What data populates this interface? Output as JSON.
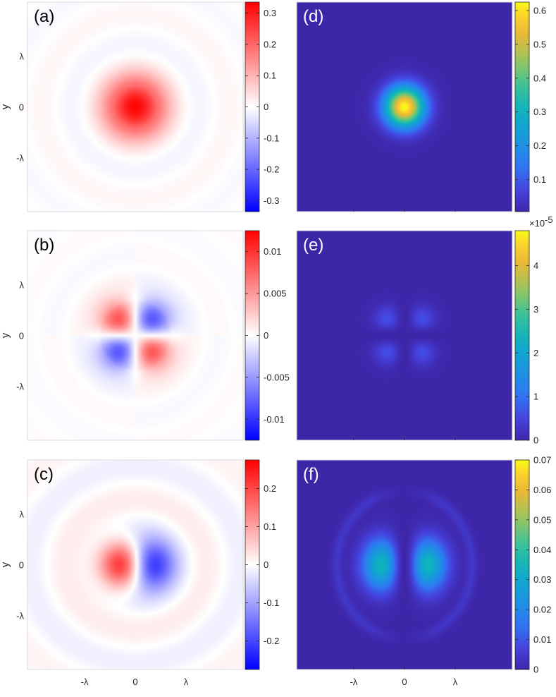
{
  "chart_data": [
    {
      "type": "heatmap",
      "panel_label": "(a)",
      "field": "gauss_ring",
      "colormap": "bwr",
      "ylabel": "y",
      "y_ticks": [
        "λ",
        "0",
        "-λ"
      ],
      "x_ticks": [],
      "colorbar": {
        "ticks": [
          0.3,
          0.2,
          0.1,
          0,
          -0.1,
          -0.2,
          -0.3
        ],
        "tick_labels": [
          "0.3",
          "0.2",
          "0.1",
          "0",
          "-0.1",
          "-0.2",
          "-0.3"
        ],
        "range": [
          -0.335,
          0.335
        ]
      }
    },
    {
      "type": "heatmap",
      "panel_label": "(b)",
      "field": "quadrupole",
      "colormap": "bwr",
      "ylabel": "y",
      "y_ticks": [
        "λ",
        "0",
        "-λ"
      ],
      "x_ticks": [],
      "colorbar": {
        "ticks": [
          0.01,
          0.005,
          0,
          -0.005,
          -0.01
        ],
        "tick_labels": [
          "0.01",
          "0.005",
          "0",
          "-0.005",
          "-0.01"
        ],
        "range": [
          -0.0125,
          0.0125
        ]
      }
    },
    {
      "type": "heatmap",
      "panel_label": "(c)",
      "field": "dipole",
      "colormap": "bwr",
      "ylabel": "y",
      "y_ticks": [
        "λ",
        "0",
        "-λ"
      ],
      "x_ticks": [
        "-λ",
        "0",
        "λ"
      ],
      "colorbar": {
        "ticks": [
          0.2,
          0.1,
          0,
          -0.1,
          -0.2
        ],
        "tick_labels": [
          "0.2",
          "0.1",
          "0",
          "-0.1",
          "-0.2"
        ],
        "range": [
          -0.275,
          0.275
        ]
      }
    },
    {
      "type": "heatmap",
      "panel_label": "(d)",
      "field": "gauss_intensity",
      "colormap": "parula",
      "ylabel": "",
      "y_ticks": [],
      "x_ticks": [],
      "colorbar": {
        "ticks": [
          0.6,
          0.5,
          0.4,
          0.3,
          0.2,
          0.1
        ],
        "tick_labels": [
          "0.6",
          "0.5",
          "0.4",
          "0.3",
          "0.2",
          "0.1"
        ],
        "range": [
          0.005,
          0.625
        ]
      }
    },
    {
      "type": "heatmap",
      "panel_label": "(e)",
      "field": "quad_intensity",
      "colormap": "parula",
      "ylabel": "",
      "y_ticks": [],
      "x_ticks": [],
      "colorbar": {
        "ticks": [
          4,
          3,
          2,
          1,
          0
        ],
        "tick_labels": [
          "4",
          "3",
          "2",
          "1",
          "0"
        ],
        "range": [
          0,
          4.8
        ],
        "multiplier": "×10",
        "exponent": "-5"
      }
    },
    {
      "type": "heatmap",
      "panel_label": "(f)",
      "field": "dipole_intensity",
      "colormap": "parula",
      "ylabel": "",
      "y_ticks": [],
      "x_ticks": [
        "-λ",
        "0",
        "λ"
      ],
      "colorbar": {
        "ticks": [
          0.07,
          0.06,
          0.05,
          0.04,
          0.03,
          0.02,
          0.01,
          0
        ],
        "tick_labels": [
          "0.07",
          "0.06",
          "0.05",
          "0.04",
          "0.03",
          "0.02",
          "0.01",
          "0"
        ],
        "range": [
          0,
          0.07
        ]
      }
    }
  ]
}
